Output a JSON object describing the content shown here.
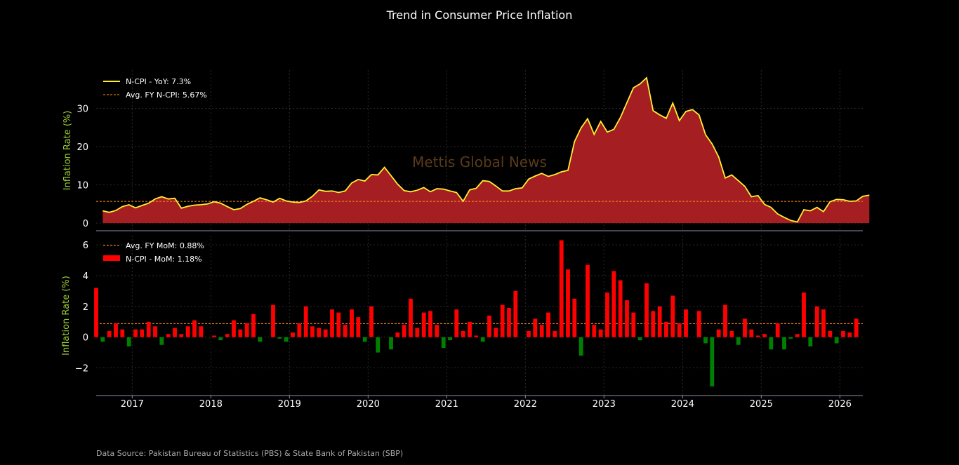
{
  "colors": {
    "background": "#000000",
    "line": "#ffee33",
    "area": "#a51e22",
    "avg_line": "#ff8c1a",
    "bar_pos": "#ff0000",
    "bar_neg": "#008000",
    "ylabel": "#9acd32",
    "spine": "#8e8ea8",
    "grid": "#2a2a2a"
  },
  "title": "Trend in Consumer Price Inflation",
  "watermark": "Mettis Global News",
  "source": "Data Source: Pakistan Bureau of Statistics (PBS) & State Bank of Pakistan (SBP)",
  "chart_data": [
    {
      "type": "area",
      "ylabel": "Inflation Rate (%)",
      "ylim": [
        -2,
        40
      ],
      "yticks": [
        0,
        10,
        20,
        30
      ],
      "grid": true,
      "legend_position": "top-left",
      "legend": [
        "N-CPI - YoY: 7.3%",
        "Avg. FY N-CPI: 5.67%"
      ],
      "avg": 5.67,
      "start": "2016-08",
      "values": [
        3.2,
        2.8,
        3.3,
        4.3,
        4.8,
        4.0,
        4.6,
        5.2,
        6.3,
        6.9,
        6.3,
        6.5,
        3.9,
        4.4,
        4.7,
        4.8,
        5.0,
        5.6,
        5.2,
        4.3,
        3.5,
        3.8,
        4.9,
        5.7,
        6.6,
        6.1,
        5.5,
        6.5,
        5.8,
        5.5,
        5.4,
        5.8,
        7.0,
        8.7,
        8.3,
        8.4,
        8.0,
        8.4,
        10.5,
        11.4,
        11.0,
        12.7,
        12.6,
        14.6,
        12.4,
        10.2,
        8.5,
        8.2,
        8.6,
        9.3,
        8.2,
        9.0,
        8.9,
        8.4,
        8.0,
        5.7,
        8.7,
        9.1,
        11.1,
        10.9,
        9.7,
        8.4,
        8.4,
        9.0,
        9.2,
        11.5,
        12.3,
        13.0,
        12.2,
        12.7,
        13.4,
        13.8,
        21.3,
        24.9,
        27.3,
        23.2,
        26.6,
        23.8,
        24.5,
        27.6,
        31.5,
        35.4,
        36.4,
        38.0,
        29.4,
        28.3,
        27.4,
        31.4,
        26.8,
        29.2,
        29.7,
        28.3,
        23.1,
        20.7,
        17.3,
        11.8,
        12.6,
        11.1,
        9.6,
        6.9,
        7.2,
        4.9,
        4.1,
        2.4,
        1.5,
        0.7,
        0.3,
        3.5,
        3.2,
        4.1,
        3.0,
        5.6,
        6.2,
        6.1,
        5.7,
        5.8,
        7.0,
        7.3
      ]
    },
    {
      "type": "bar",
      "ylabel": "Inflation Rate (%)",
      "ylim": [
        -3.8,
        6.6
      ],
      "yticks": [
        -2,
        0,
        2,
        4,
        6
      ],
      "grid": true,
      "legend_position": "top-left",
      "legend": [
        "Avg. FY MoM: 0.88%",
        "N-CPI - MoM: 1.18%"
      ],
      "avg": 0.88,
      "start": "2016-07",
      "x_labels": [
        "2017",
        "2018",
        "2019",
        "2020",
        "2021",
        "2022",
        "2023",
        "2024",
        "2025",
        "2026"
      ],
      "values": [
        3.2,
        -0.3,
        0.4,
        0.9,
        0.5,
        -0.6,
        0.5,
        0.5,
        1.0,
        0.7,
        -0.5,
        0.2,
        0.6,
        0.2,
        0.7,
        1.1,
        0.7,
        0.0,
        0.1,
        -0.2,
        0.2,
        1.1,
        0.5,
        0.9,
        1.5,
        -0.3,
        0.0,
        2.1,
        -0.1,
        -0.3,
        0.3,
        0.9,
        2.0,
        0.7,
        0.6,
        0.5,
        1.8,
        1.6,
        0.8,
        1.8,
        1.3,
        -0.3,
        2.0,
        -1.0,
        0.0,
        -0.8,
        0.3,
        0.8,
        2.5,
        0.6,
        1.6,
        1.7,
        0.8,
        -0.7,
        -0.2,
        1.8,
        0.4,
        1.0,
        0.1,
        -0.3,
        1.4,
        0.6,
        2.1,
        1.9,
        3.0,
        0.0,
        0.4,
        1.2,
        0.8,
        1.6,
        0.4,
        6.3,
        4.4,
        2.5,
        -1.2,
        4.7,
        0.8,
        0.5,
        2.9,
        4.3,
        3.7,
        2.4,
        1.6,
        -0.2,
        3.5,
        1.7,
        2.0,
        1.0,
        2.7,
        0.9,
        1.8,
        0.0,
        1.7,
        -0.4,
        -3.2,
        0.5,
        2.1,
        0.4,
        -0.5,
        1.2,
        0.5,
        0.1,
        0.2,
        -0.8,
        0.9,
        -0.8,
        -0.1,
        0.2,
        2.9,
        -0.6,
        2.0,
        1.8,
        0.4,
        -0.4,
        0.4,
        0.3,
        1.2
      ]
    }
  ]
}
